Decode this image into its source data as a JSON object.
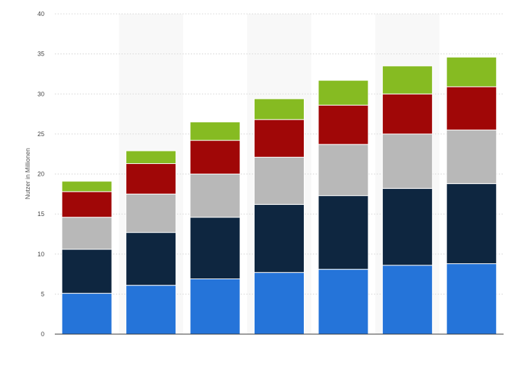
{
  "chart_data": {
    "type": "bar",
    "stacked": true,
    "title": "",
    "xlabel": "",
    "ylabel": "Nutzer in Millionen",
    "ylim": [
      0,
      40
    ],
    "yticks": [
      0,
      5,
      10,
      15,
      20,
      25,
      30,
      35,
      40
    ],
    "categories": [
      "",
      "",
      "",
      "",
      "",
      "",
      ""
    ],
    "grid": true,
    "legend": "none",
    "series": [
      {
        "color": "#2574d9",
        "values": [
          5.1,
          6.1,
          6.9,
          7.7,
          8.1,
          8.6,
          8.8
        ]
      },
      {
        "color": "#0e2640",
        "values": [
          5.5,
          6.6,
          7.7,
          8.5,
          9.2,
          9.6,
          10.0
        ]
      },
      {
        "color": "#b8b8b8",
        "values": [
          4.0,
          4.8,
          5.4,
          5.9,
          6.4,
          6.8,
          6.7
        ]
      },
      {
        "color": "#a00707",
        "values": [
          3.2,
          3.8,
          4.2,
          4.7,
          4.9,
          5.0,
          5.4
        ]
      },
      {
        "color": "#86bb22",
        "values": [
          1.3,
          1.6,
          2.3,
          2.6,
          3.1,
          3.5,
          3.7
        ]
      }
    ]
  }
}
